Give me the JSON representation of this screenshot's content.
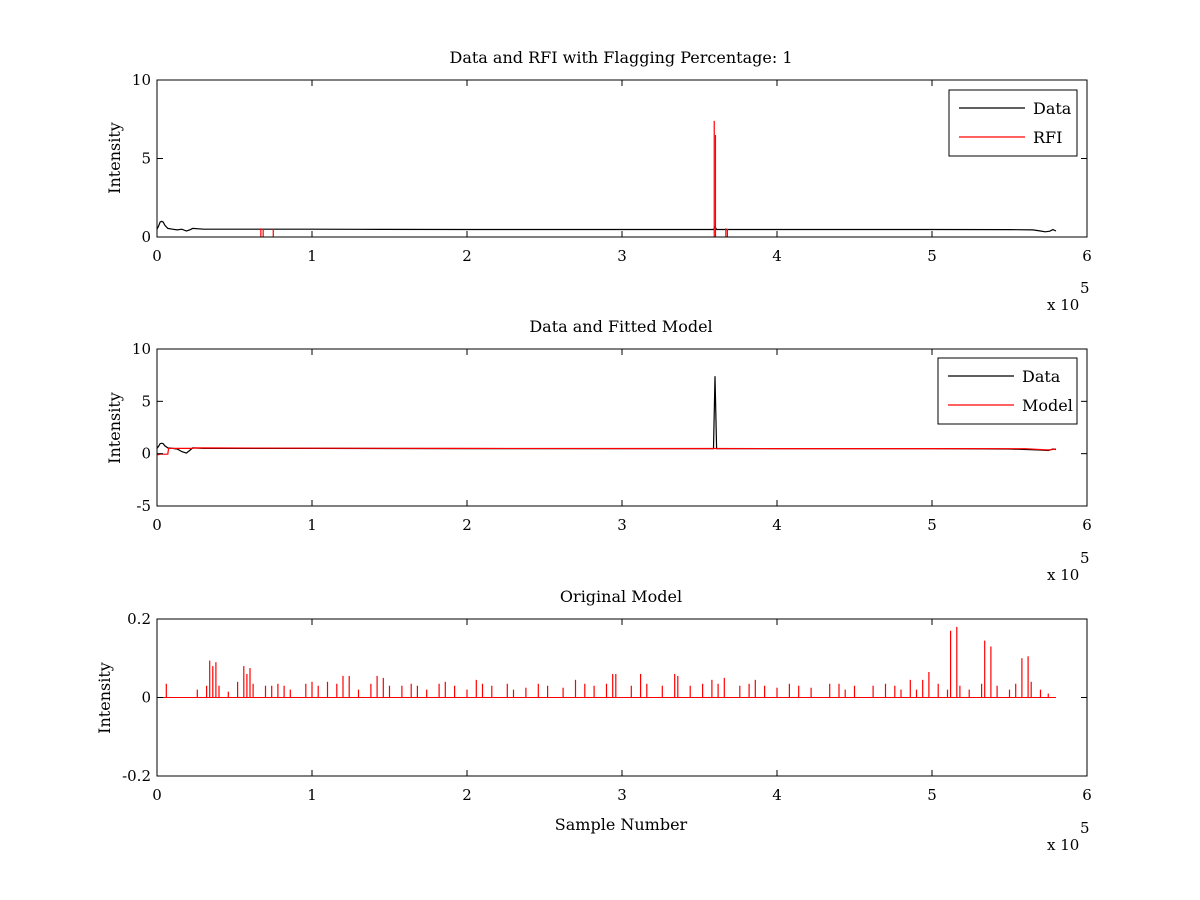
{
  "figure": {
    "background": "#ffffff"
  },
  "chart_data": [
    {
      "type": "line",
      "title": "Data and RFI with Flagging Percentage: 1",
      "xlabel": "",
      "ylabel": "Intensity",
      "xlim": [
        0,
        600000
      ],
      "ylim": [
        0,
        10
      ],
      "xticks": [
        0,
        1,
        2,
        3,
        4,
        5,
        6
      ],
      "xtick_labels": [
        "0",
        "1",
        "2",
        "3",
        "4",
        "5",
        "6"
      ],
      "yticks": [
        0,
        5,
        10
      ],
      "ytick_labels": [
        "0",
        "5",
        "10"
      ],
      "x_exponent_label": "x 10",
      "x_exponent_power": "5",
      "grid": false,
      "legend_position": "top-right",
      "series": [
        {
          "name": "Data",
          "color": "#000000",
          "points": [
            [
              0,
              0.5
            ],
            [
              1000,
              0.7
            ],
            [
              2000,
              0.95
            ],
            [
              3000,
              1.0
            ],
            [
              4000,
              0.95
            ],
            [
              5000,
              0.75
            ],
            [
              7000,
              0.55
            ],
            [
              10000,
              0.5
            ],
            [
              13000,
              0.45
            ],
            [
              16000,
              0.5
            ],
            [
              19000,
              0.38
            ],
            [
              21000,
              0.45
            ],
            [
              23000,
              0.55
            ],
            [
              30000,
              0.5
            ],
            [
              60000,
              0.5
            ],
            [
              100000,
              0.5
            ],
            [
              130000,
              0.49
            ],
            [
              200000,
              0.48
            ],
            [
              300000,
              0.48
            ],
            [
              359000,
              0.48
            ],
            [
              360000,
              0.65
            ],
            [
              361000,
              0.48
            ],
            [
              400000,
              0.48
            ],
            [
              450000,
              0.48
            ],
            [
              500000,
              0.48
            ],
            [
              550000,
              0.47
            ],
            [
              565000,
              0.45
            ],
            [
              570000,
              0.38
            ],
            [
              573000,
              0.33
            ],
            [
              576000,
              0.37
            ],
            [
              578000,
              0.47
            ],
            [
              580000,
              0.38
            ]
          ]
        },
        {
          "name": "RFI",
          "color": "#ff0000",
          "spikes": [
            [
              67000,
              0.55
            ],
            [
              68500,
              0.52
            ],
            [
              75000,
              0.52
            ],
            [
              359500,
              7.4
            ],
            [
              360300,
              6.5
            ],
            [
              367000,
              0.55
            ],
            [
              368000,
              0.52
            ]
          ]
        }
      ]
    },
    {
      "type": "line",
      "title": "Data and Fitted Model",
      "xlabel": "",
      "ylabel": "Intensity",
      "xlim": [
        0,
        600000
      ],
      "ylim": [
        -5,
        10
      ],
      "xticks": [
        0,
        1,
        2,
        3,
        4,
        5,
        6
      ],
      "xtick_labels": [
        "0",
        "1",
        "2",
        "3",
        "4",
        "5",
        "6"
      ],
      "yticks": [
        -5,
        0,
        5,
        10
      ],
      "ytick_labels": [
        "-5",
        "0",
        "5",
        "10"
      ],
      "x_exponent_label": "x 10",
      "x_exponent_power": "5",
      "grid": false,
      "legend_position": "top-right",
      "series": [
        {
          "name": "Data",
          "color": "#000000",
          "points": [
            [
              0,
              0.5
            ],
            [
              1000,
              0.7
            ],
            [
              2000,
              0.95
            ],
            [
              3000,
              1.0
            ],
            [
              4000,
              0.95
            ],
            [
              5000,
              0.75
            ],
            [
              7000,
              0.55
            ],
            [
              10000,
              0.5
            ],
            [
              13000,
              0.45
            ],
            [
              16000,
              0.2
            ],
            [
              19000,
              0.05
            ],
            [
              21000,
              0.3
            ],
            [
              23000,
              0.55
            ],
            [
              30000,
              0.5
            ],
            [
              60000,
              0.5
            ],
            [
              100000,
              0.5
            ],
            [
              200000,
              0.48
            ],
            [
              300000,
              0.48
            ],
            [
              359000,
              0.48
            ],
            [
              360000,
              7.4
            ],
            [
              361000,
              0.48
            ],
            [
              400000,
              0.48
            ],
            [
              450000,
              0.48
            ],
            [
              500000,
              0.48
            ],
            [
              550000,
              0.45
            ],
            [
              570000,
              0.35
            ],
            [
              575000,
              0.3
            ],
            [
              578000,
              0.45
            ],
            [
              580000,
              0.4
            ]
          ]
        },
        {
          "name": "Model",
          "color": "#ff0000",
          "points": [
            [
              0,
              -0.1
            ],
            [
              1000,
              -0.1
            ],
            [
              2000,
              -0.05
            ],
            [
              7000,
              -0.05
            ],
            [
              7500,
              0.5
            ],
            [
              23000,
              0.5
            ],
            [
              24000,
              0.55
            ],
            [
              100000,
              0.52
            ],
            [
              200000,
              0.5
            ],
            [
              300000,
              0.49
            ],
            [
              360000,
              0.49
            ],
            [
              400000,
              0.48
            ],
            [
              500000,
              0.48
            ],
            [
              560000,
              0.47
            ],
            [
              575000,
              0.35
            ],
            [
              580000,
              0.45
            ]
          ]
        }
      ]
    },
    {
      "type": "line",
      "title": "Original Model",
      "xlabel": "Sample Number",
      "ylabel": "Intensity",
      "xlim": [
        0,
        600000
      ],
      "ylim": [
        -0.2,
        0.2
      ],
      "xticks": [
        0,
        1,
        2,
        3,
        4,
        5,
        6
      ],
      "xtick_labels": [
        "0",
        "1",
        "2",
        "3",
        "4",
        "5",
        "6"
      ],
      "yticks": [
        -0.2,
        0,
        0.2
      ],
      "ytick_labels": [
        "-0.2",
        "0",
        "0.2"
      ],
      "x_exponent_label": "x 10",
      "x_exponent_power": "5",
      "grid": false,
      "legend_position": "",
      "series": [
        {
          "name": "",
          "color": "#ff0000",
          "x_extent": [
            0,
            580000
          ],
          "spikes": [
            [
              6000,
              0.035
            ],
            [
              26000,
              0.02
            ],
            [
              32000,
              0.03
            ],
            [
              34000,
              0.094
            ],
            [
              36000,
              0.08
            ],
            [
              38000,
              0.09
            ],
            [
              40000,
              0.03
            ],
            [
              46000,
              0.015
            ],
            [
              52000,
              0.04
            ],
            [
              56000,
              0.08
            ],
            [
              58000,
              0.06
            ],
            [
              60000,
              0.075
            ],
            [
              62000,
              0.035
            ],
            [
              70000,
              0.03
            ],
            [
              74000,
              0.03
            ],
            [
              78000,
              0.035
            ],
            [
              82000,
              0.03
            ],
            [
              86000,
              0.02
            ],
            [
              96000,
              0.035
            ],
            [
              100000,
              0.04
            ],
            [
              104000,
              0.03
            ],
            [
              110000,
              0.04
            ],
            [
              116000,
              0.035
            ],
            [
              120000,
              0.055
            ],
            [
              124000,
              0.055
            ],
            [
              130000,
              0.02
            ],
            [
              138000,
              0.035
            ],
            [
              142000,
              0.055
            ],
            [
              146000,
              0.05
            ],
            [
              150000,
              0.03
            ],
            [
              158000,
              0.03
            ],
            [
              164000,
              0.035
            ],
            [
              168000,
              0.03
            ],
            [
              174000,
              0.02
            ],
            [
              182000,
              0.035
            ],
            [
              186000,
              0.04
            ],
            [
              192000,
              0.03
            ],
            [
              200000,
              0.02
            ],
            [
              206000,
              0.045
            ],
            [
              210000,
              0.035
            ],
            [
              216000,
              0.03
            ],
            [
              226000,
              0.035
            ],
            [
              230000,
              0.02
            ],
            [
              238000,
              0.025
            ],
            [
              246000,
              0.035
            ],
            [
              252000,
              0.03
            ],
            [
              262000,
              0.025
            ],
            [
              270000,
              0.045
            ],
            [
              276000,
              0.035
            ],
            [
              282000,
              0.03
            ],
            [
              290000,
              0.035
            ],
            [
              294000,
              0.06
            ],
            [
              296000,
              0.06
            ],
            [
              306000,
              0.03
            ],
            [
              312000,
              0.06
            ],
            [
              316000,
              0.035
            ],
            [
              326000,
              0.03
            ],
            [
              334000,
              0.06
            ],
            [
              336000,
              0.055
            ],
            [
              344000,
              0.03
            ],
            [
              352000,
              0.035
            ],
            [
              358000,
              0.045
            ],
            [
              362000,
              0.035
            ],
            [
              366000,
              0.05
            ],
            [
              376000,
              0.03
            ],
            [
              382000,
              0.035
            ],
            [
              386000,
              0.045
            ],
            [
              392000,
              0.03
            ],
            [
              400000,
              0.025
            ],
            [
              408000,
              0.035
            ],
            [
              414000,
              0.03
            ],
            [
              422000,
              0.025
            ],
            [
              434000,
              0.035
            ],
            [
              440000,
              0.035
            ],
            [
              444000,
              0.02
            ],
            [
              450000,
              0.03
            ],
            [
              462000,
              0.03
            ],
            [
              470000,
              0.035
            ],
            [
              476000,
              0.03
            ],
            [
              480000,
              0.02
            ],
            [
              486000,
              0.045
            ],
            [
              490000,
              0.02
            ],
            [
              494000,
              0.045
            ],
            [
              498000,
              0.065
            ],
            [
              504000,
              0.035
            ],
            [
              510000,
              0.02
            ],
            [
              512000,
              0.17
            ],
            [
              516000,
              0.18
            ],
            [
              518000,
              0.03
            ],
            [
              524000,
              0.02
            ],
            [
              532000,
              0.035
            ],
            [
              534000,
              0.145
            ],
            [
              538000,
              0.13
            ],
            [
              542000,
              0.03
            ],
            [
              550000,
              0.02
            ],
            [
              554000,
              0.035
            ],
            [
              558000,
              0.1
            ],
            [
              562000,
              0.105
            ],
            [
              564000,
              0.04
            ],
            [
              570000,
              0.02
            ],
            [
              575000,
              0.01
            ]
          ]
        }
      ]
    }
  ]
}
